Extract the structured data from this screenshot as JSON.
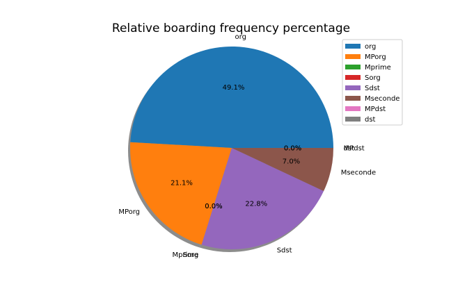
{
  "chart_data": {
    "type": "pie",
    "title": "Relative boarding frequency percentage",
    "slices": [
      {
        "label": "org",
        "value": 49.1,
        "pct_label": "49.1%",
        "color": "#1f77b4"
      },
      {
        "label": "MPorg",
        "value": 21.1,
        "pct_label": "21.1%",
        "color": "#ff7f0e"
      },
      {
        "label": "Mprime",
        "value": 0.0,
        "pct_label": "0.0%",
        "color": "#2ca02c"
      },
      {
        "label": "Sorg",
        "value": 0.0,
        "pct_label": "0.0%",
        "color": "#d62728"
      },
      {
        "label": "Sdst",
        "value": 22.8,
        "pct_label": "22.8%",
        "color": "#9467bd"
      },
      {
        "label": "Mseconde",
        "value": 7.0,
        "pct_label": "7.0%",
        "color": "#8c564b"
      },
      {
        "label": "MPdst",
        "value": 0.0,
        "pct_label": "0.0%",
        "color": "#e377c2"
      },
      {
        "label": "dst",
        "value": 0.0,
        "pct_label": "0.0%",
        "color": "#7f7f7f"
      }
    ],
    "shadow": true,
    "legend_position": "top-right"
  }
}
